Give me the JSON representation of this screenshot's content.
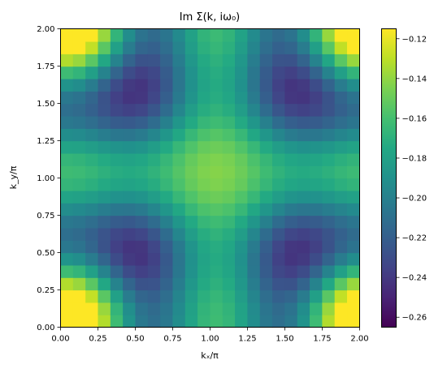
{
  "chart_data": {
    "type": "heatmap",
    "title": "Im Σ(k, iω₀)",
    "xlabel": "kₓ/π",
    "ylabel": "k_y/π",
    "xlim": [
      0,
      2
    ],
    "ylim": [
      0,
      2
    ],
    "grid": false,
    "colormap": "viridis",
    "x_ticks": [
      "0.00",
      "0.25",
      "0.50",
      "0.75",
      "1.00",
      "1.25",
      "1.50",
      "1.75",
      "2.00"
    ],
    "y_ticks": [
      "0.00",
      "0.25",
      "0.50",
      "0.75",
      "1.00",
      "1.25",
      "1.50",
      "1.75",
      "2.00"
    ],
    "colorbar": {
      "vmin": -0.265,
      "vmax": -0.115,
      "tick_values": [
        -0.26,
        -0.24,
        -0.22,
        -0.2,
        -0.18,
        -0.16,
        -0.14,
        -0.12
      ],
      "tick_labels": [
        "−0.26",
        "−0.24",
        "−0.22",
        "−0.20",
        "−0.18",
        "−0.16",
        "−0.14",
        "−0.12"
      ]
    },
    "grid_size": 24,
    "cell_width": 0.0833,
    "x_start": 0,
    "y_start": 0,
    "value_model": {
      "expression": "c0 + c1*(cos(pi*kx)+cos(pi*ky)) + c2*cos(pi*kx)*cos(pi*ky) + c3*(cos(2*pi*kx)+cos(2*pi*ky)) + c4*(cos(2*pi*kx)*cos(pi*ky)+cos(pi*kx)*cos(2*pi*ky))",
      "c0": -0.18875,
      "c1": 0.0,
      "c2": 0.02625,
      "c3": 0.02625,
      "c4": 0.01625
    }
  }
}
